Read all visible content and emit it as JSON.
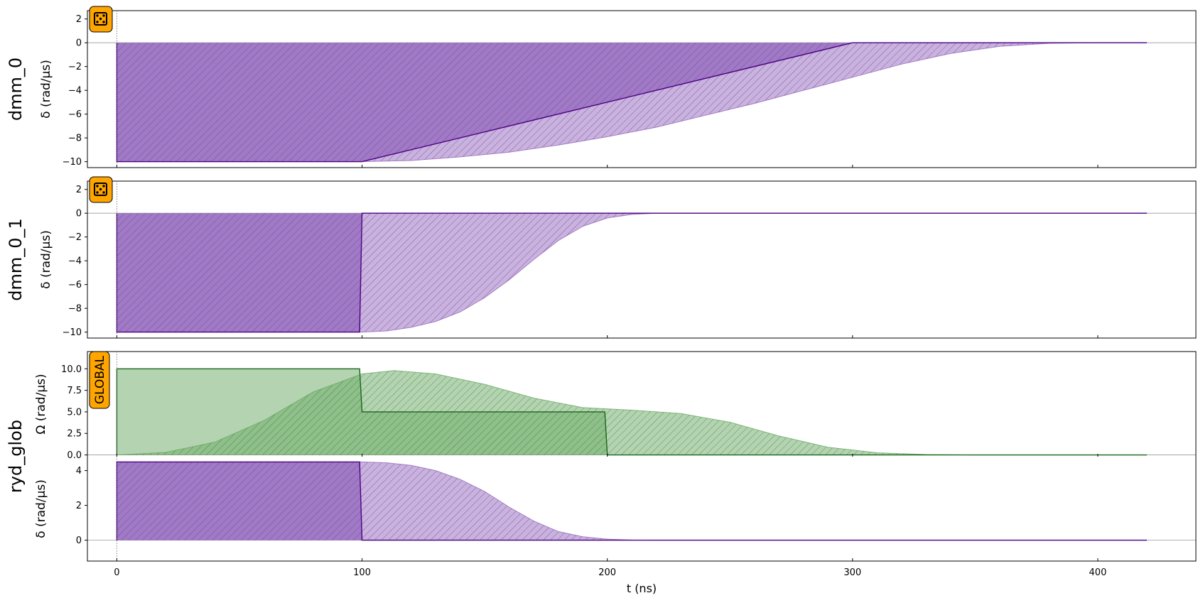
{
  "colors": {
    "detuning": "#9467bd",
    "detuning_edge": "#4b0082",
    "amplitude": "#6aaa64",
    "amplitude_edge": "#1a661a",
    "badge": "#ffa500"
  },
  "chart_data": {
    "type": "area",
    "x_axis": {
      "label": "t (ns)",
      "range": [
        -12,
        440
      ],
      "ticks": [
        0,
        100,
        200,
        300,
        400
      ]
    },
    "channels": [
      {
        "name": "dmm_0",
        "badge_icon": "dice-icon",
        "panels": [
          {
            "ylabel": "δ (rad/µs)",
            "ylim": [
              -10.5,
              2.7
            ],
            "yticks": [
              2,
              0,
              -2,
              -4,
              -6,
              -8,
              -10
            ],
            "programmed": {
              "x": [
                0,
                0,
                100,
                300,
                420,
                420
              ],
              "y": [
                0,
                -10,
                -10,
                0,
                0,
                0
              ]
            },
            "modulated": {
              "x": [
                0,
                0,
                100,
                120,
                140,
                160,
                180,
                200,
                220,
                240,
                260,
                280,
                300,
                320,
                340,
                360,
                380,
                400,
                420
              ],
              "y": [
                0,
                -10,
                -10,
                -9.9,
                -9.6,
                -9.2,
                -8.6,
                -7.9,
                -7.1,
                -6.1,
                -5.1,
                -4.0,
                -2.9,
                -1.8,
                -0.9,
                -0.3,
                -0.05,
                0,
                0
              ]
            }
          }
        ]
      },
      {
        "name": "dmm_0_1",
        "badge_icon": "dice-icon",
        "panels": [
          {
            "ylabel": "δ (rad/µs)",
            "ylim": [
              -10.5,
              2.7
            ],
            "yticks": [
              2,
              0,
              -2,
              -4,
              -6,
              -8,
              -10
            ],
            "programmed": {
              "x": [
                0,
                0,
                99,
                100,
                420
              ],
              "y": [
                0,
                -10,
                -10,
                0,
                0
              ]
            },
            "modulated": {
              "x": [
                0,
                0,
                100,
                110,
                120,
                130,
                140,
                150,
                160,
                170,
                180,
                190,
                200,
                210,
                220,
                420
              ],
              "y": [
                0,
                -10,
                -10,
                -9.9,
                -9.6,
                -9.1,
                -8.3,
                -7.1,
                -5.6,
                -3.9,
                -2.3,
                -1.1,
                -0.4,
                -0.1,
                0,
                0
              ]
            }
          }
        ]
      },
      {
        "name": "ryd_glob",
        "badge_text": "GLOBAL",
        "panels": [
          {
            "ylabel": "Ω (rad/µs)",
            "ylim": [
              -0.2,
              12
            ],
            "yticks": [
              10.0,
              7.5,
              5.0,
              2.5,
              0.0
            ],
            "ytick_labels": [
              "10.0",
              "7.5",
              "5.0",
              "2.5",
              "0.0"
            ],
            "programmed": {
              "x": [
                0,
                0,
                99,
                100,
                199,
                200,
                420
              ],
              "y": [
                0,
                10,
                10,
                5,
                5,
                0,
                0
              ]
            },
            "modulated": {
              "x": [
                0,
                20,
                40,
                60,
                80,
                100,
                113,
                130,
                150,
                170,
                190,
                210,
                230,
                250,
                270,
                290,
                310,
                330,
                350,
                420
              ],
              "y": [
                0,
                0.3,
                1.5,
                4.0,
                7.3,
                9.4,
                9.8,
                9.4,
                8.2,
                6.6,
                5.5,
                5.2,
                4.8,
                3.8,
                2.2,
                0.9,
                0.25,
                0.05,
                0,
                0
              ]
            }
          },
          {
            "ylabel": "δ (rad/µs)",
            "ylim": [
              -1.2,
              4.8
            ],
            "yticks": [
              4,
              2,
              0
            ],
            "programmed": {
              "x": [
                0,
                0,
                99,
                100,
                420
              ],
              "y": [
                0,
                4.5,
                4.5,
                0,
                0
              ]
            },
            "modulated": {
              "x": [
                0,
                0,
                100,
                110,
                120,
                130,
                140,
                150,
                160,
                170,
                180,
                190,
                200,
                210,
                220,
                420
              ],
              "y": [
                0,
                4.5,
                4.5,
                4.45,
                4.3,
                4.0,
                3.5,
                2.8,
                1.9,
                1.1,
                0.5,
                0.2,
                0.06,
                0.01,
                0,
                0
              ]
            }
          }
        ]
      }
    ]
  }
}
